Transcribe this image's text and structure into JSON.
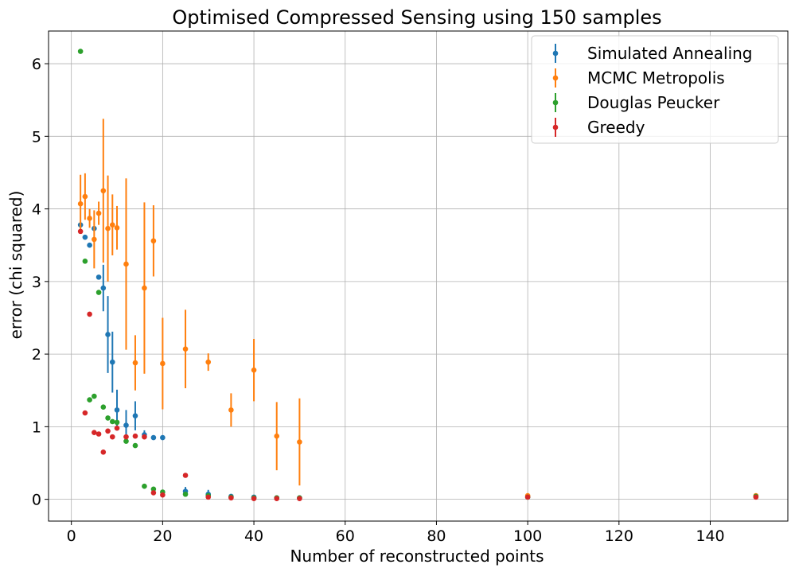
{
  "chart_data": {
    "type": "scatter",
    "title": "Optimised Compressed Sensing using 150 samples",
    "xlabel": "Number of reconstructed points",
    "ylabel": "error (chi squared)",
    "xlim": [
      -5,
      157
    ],
    "ylim": [
      -0.3,
      6.45
    ],
    "xticks": [
      0,
      20,
      40,
      60,
      80,
      100,
      120,
      140
    ],
    "yticks": [
      0,
      1,
      2,
      3,
      4,
      5,
      6
    ],
    "grid": true,
    "legend_position": "top-right",
    "series": [
      {
        "name": "Simulated Annealing",
        "color": "#1f77b4",
        "points": [
          {
            "x": 2,
            "y": 3.78,
            "err": 0
          },
          {
            "x": 3,
            "y": 3.61,
            "err": 0
          },
          {
            "x": 4,
            "y": 3.5,
            "err": 0
          },
          {
            "x": 5,
            "y": 3.73,
            "err": 0
          },
          {
            "x": 6,
            "y": 3.06,
            "err": 0
          },
          {
            "x": 7,
            "y": 2.91,
            "err": 0.32
          },
          {
            "x": 8,
            "y": 2.27,
            "err": 0.53
          },
          {
            "x": 9,
            "y": 1.89,
            "err": 0.42
          },
          {
            "x": 10,
            "y": 1.23,
            "err": 0.28
          },
          {
            "x": 12,
            "y": 1.02,
            "err": 0.21
          },
          {
            "x": 14,
            "y": 1.15,
            "err": 0.2
          },
          {
            "x": 16,
            "y": 0.89,
            "err": 0.06
          },
          {
            "x": 18,
            "y": 0.85,
            "err": 0
          },
          {
            "x": 20,
            "y": 0.85,
            "err": 0
          },
          {
            "x": 25,
            "y": 0.11,
            "err": 0.06
          },
          {
            "x": 30,
            "y": 0.07,
            "err": 0.06
          },
          {
            "x": 35,
            "y": 0.04,
            "err": 0.03
          },
          {
            "x": 40,
            "y": 0.03,
            "err": 0.02
          },
          {
            "x": 45,
            "y": 0.02,
            "err": 0
          },
          {
            "x": 50,
            "y": 0.02,
            "err": 0
          },
          {
            "x": 100,
            "y": 0.03,
            "err": 0
          },
          {
            "x": 150,
            "y": 0.04,
            "err": 0
          }
        ]
      },
      {
        "name": "MCMC Metropolis",
        "color": "#ff7f0e",
        "points": [
          {
            "x": 2,
            "y": 4.07,
            "err": 0.4
          },
          {
            "x": 3,
            "y": 4.17,
            "err": 0.32
          },
          {
            "x": 4,
            "y": 3.87,
            "err": 0.13
          },
          {
            "x": 5,
            "y": 3.58,
            "err": 0.4
          },
          {
            "x": 6,
            "y": 3.94,
            "err": 0.16
          },
          {
            "x": 7,
            "y": 4.25,
            "err": 0.99
          },
          {
            "x": 8,
            "y": 3.73,
            "err": 0.73
          },
          {
            "x": 9,
            "y": 3.78,
            "err": 0.42
          },
          {
            "x": 10,
            "y": 3.74,
            "err": 0.3
          },
          {
            "x": 12,
            "y": 3.24,
            "err": 1.18
          },
          {
            "x": 14,
            "y": 1.88,
            "err": 0.38
          },
          {
            "x": 16,
            "y": 2.91,
            "err": 1.18
          },
          {
            "x": 18,
            "y": 3.56,
            "err": 0.49
          },
          {
            "x": 20,
            "y": 1.87,
            "err": 0.63
          },
          {
            "x": 25,
            "y": 2.07,
            "err": 0.54
          },
          {
            "x": 30,
            "y": 1.89,
            "err": 0.12
          },
          {
            "x": 35,
            "y": 1.23,
            "err": 0.23
          },
          {
            "x": 40,
            "y": 1.78,
            "err": 0.43
          },
          {
            "x": 45,
            "y": 0.87,
            "err": 0.47
          },
          {
            "x": 50,
            "y": 0.79,
            "err": 0.6
          },
          {
            "x": 100,
            "y": 0.05,
            "err": 0
          },
          {
            "x": 150,
            "y": 0.05,
            "err": 0
          }
        ]
      },
      {
        "name": "Douglas Peucker",
        "color": "#2ca02c",
        "points": [
          {
            "x": 2,
            "y": 6.17,
            "err": 0
          },
          {
            "x": 3,
            "y": 3.28,
            "err": 0
          },
          {
            "x": 4,
            "y": 1.37,
            "err": 0
          },
          {
            "x": 5,
            "y": 1.42,
            "err": 0
          },
          {
            "x": 6,
            "y": 2.85,
            "err": 0
          },
          {
            "x": 7,
            "y": 1.27,
            "err": 0
          },
          {
            "x": 8,
            "y": 1.12,
            "err": 0
          },
          {
            "x": 9,
            "y": 1.07,
            "err": 0
          },
          {
            "x": 10,
            "y": 1.06,
            "err": 0
          },
          {
            "x": 12,
            "y": 0.8,
            "err": 0
          },
          {
            "x": 14,
            "y": 0.74,
            "err": 0
          },
          {
            "x": 16,
            "y": 0.18,
            "err": 0
          },
          {
            "x": 18,
            "y": 0.14,
            "err": 0
          },
          {
            "x": 20,
            "y": 0.1,
            "err": 0
          },
          {
            "x": 25,
            "y": 0.07,
            "err": 0
          },
          {
            "x": 30,
            "y": 0.05,
            "err": 0
          },
          {
            "x": 35,
            "y": 0.03,
            "err": 0
          },
          {
            "x": 40,
            "y": 0.02,
            "err": 0
          },
          {
            "x": 45,
            "y": 0.02,
            "err": 0
          },
          {
            "x": 50,
            "y": 0.02,
            "err": 0
          },
          {
            "x": 100,
            "y": 0.03,
            "err": 0
          },
          {
            "x": 150,
            "y": 0.04,
            "err": 0
          }
        ]
      },
      {
        "name": "Greedy",
        "color": "#d62728",
        "points": [
          {
            "x": 2,
            "y": 3.69,
            "err": 0
          },
          {
            "x": 3,
            "y": 1.19,
            "err": 0
          },
          {
            "x": 4,
            "y": 2.55,
            "err": 0
          },
          {
            "x": 5,
            "y": 0.92,
            "err": 0
          },
          {
            "x": 6,
            "y": 0.9,
            "err": 0
          },
          {
            "x": 7,
            "y": 0.65,
            "err": 0
          },
          {
            "x": 8,
            "y": 0.94,
            "err": 0
          },
          {
            "x": 9,
            "y": 0.86,
            "err": 0
          },
          {
            "x": 10,
            "y": 0.98,
            "err": 0
          },
          {
            "x": 12,
            "y": 0.86,
            "err": 0
          },
          {
            "x": 14,
            "y": 0.87,
            "err": 0
          },
          {
            "x": 16,
            "y": 0.86,
            "err": 0
          },
          {
            "x": 18,
            "y": 0.09,
            "err": 0
          },
          {
            "x": 20,
            "y": 0.06,
            "err": 0
          },
          {
            "x": 25,
            "y": 0.33,
            "err": 0
          },
          {
            "x": 30,
            "y": 0.03,
            "err": 0
          },
          {
            "x": 35,
            "y": 0.02,
            "err": 0
          },
          {
            "x": 40,
            "y": 0.01,
            "err": 0
          },
          {
            "x": 45,
            "y": 0.01,
            "err": 0
          },
          {
            "x": 50,
            "y": 0.01,
            "err": 0
          },
          {
            "x": 100,
            "y": 0.03,
            "err": 0
          },
          {
            "x": 150,
            "y": 0.03,
            "err": 0
          }
        ]
      }
    ]
  }
}
